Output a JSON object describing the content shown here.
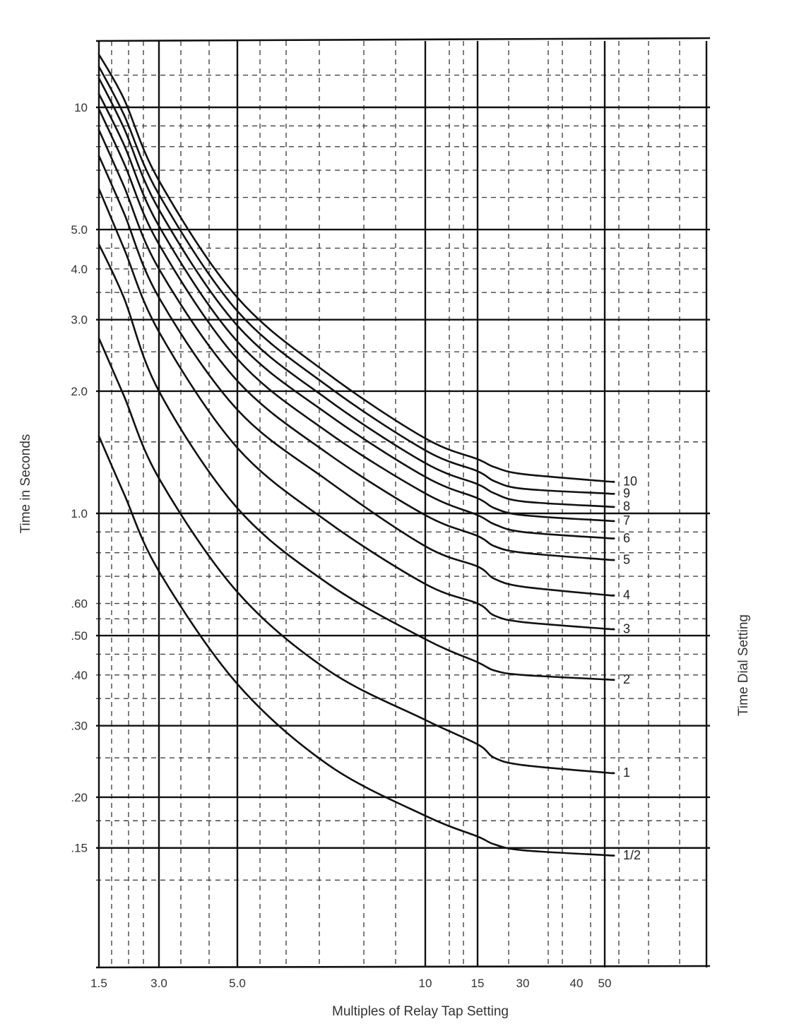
{
  "chart_data": {
    "type": "line",
    "title": "",
    "xlabel": "Multiples of Relay Tap Setting",
    "ylabel": "Time in Seconds",
    "right_label": "Time Dial Setting",
    "x_scale": "log (non-uniform ticks as printed)",
    "y_scale": "log",
    "xlim": [
      1.5,
      50
    ],
    "ylim": [
      0.1,
      14
    ],
    "x_ticks": [
      {
        "value": 1.5,
        "label": "1.5"
      },
      {
        "value": 3,
        "label": "3.0"
      },
      {
        "value": 5,
        "label": "5.0"
      },
      {
        "value": 10,
        "label": "10"
      },
      {
        "value": 15,
        "label": "15"
      },
      {
        "value": 30,
        "label": "30"
      },
      {
        "value": 40,
        "label": "40"
      },
      {
        "value": 50,
        "label": "50"
      }
    ],
    "y_ticks": [
      {
        "value": 10,
        "label": "10"
      },
      {
        "value": 5,
        "label": "5.0"
      },
      {
        "value": 4,
        "label": "4.0"
      },
      {
        "value": 3,
        "label": "3.0"
      },
      {
        "value": 2,
        "label": "2.0"
      },
      {
        "value": 1,
        "label": "1.0"
      },
      {
        "value": 0.6,
        "label": ".60"
      },
      {
        "value": 0.5,
        "label": ".50"
      },
      {
        "value": 0.4,
        "label": ".40"
      },
      {
        "value": 0.3,
        "label": ".30"
      },
      {
        "value": 0.2,
        "label": ".20"
      },
      {
        "value": 0.15,
        "label": ".15"
      }
    ],
    "grid": "solid major lines at labeled ticks, dashed minor lines",
    "series": [
      {
        "name": "10",
        "x": [
          1.5,
          2,
          3,
          5,
          7,
          10,
          15,
          20,
          30,
          50
        ],
        "y": [
          13.5,
          10.5,
          6.6,
          3.4,
          2.2,
          1.53,
          1.36,
          1.3,
          1.25,
          1.2
        ]
      },
      {
        "name": "9",
        "x": [
          1.5,
          2,
          3,
          5,
          7,
          10,
          15,
          20,
          30,
          50
        ],
        "y": [
          12.6,
          9.6,
          6.1,
          3.15,
          2.05,
          1.43,
          1.27,
          1.2,
          1.15,
          1.12
        ]
      },
      {
        "name": "8",
        "x": [
          1.5,
          2,
          3,
          5,
          7,
          10,
          15,
          20,
          30,
          50
        ],
        "y": [
          11.8,
          8.9,
          5.6,
          2.9,
          1.9,
          1.33,
          1.18,
          1.12,
          1.07,
          1.04
        ]
      },
      {
        "name": "7",
        "x": [
          1.5,
          2,
          3,
          5,
          7,
          10,
          15,
          20,
          30,
          50
        ],
        "y": [
          10.8,
          8.1,
          5.1,
          2.65,
          1.75,
          1.23,
          1.09,
          1.03,
          0.99,
          0.96
        ]
      },
      {
        "name": "6",
        "x": [
          1.5,
          2,
          3,
          5,
          7,
          10,
          15,
          20,
          30,
          50
        ],
        "y": [
          9.9,
          7.3,
          4.6,
          2.4,
          1.58,
          1.12,
          0.99,
          0.94,
          0.9,
          0.87
        ]
      },
      {
        "name": "5",
        "x": [
          1.5,
          2,
          3,
          5,
          7,
          10,
          15,
          20,
          30,
          50
        ],
        "y": [
          8.8,
          6.4,
          4.0,
          2.12,
          1.4,
          0.99,
          0.88,
          0.83,
          0.8,
          0.77
        ]
      },
      {
        "name": "4",
        "x": [
          1.5,
          2,
          3,
          5,
          7,
          10,
          15,
          20,
          30,
          50
        ],
        "y": [
          7.6,
          5.5,
          3.4,
          1.8,
          1.2,
          0.83,
          0.74,
          0.69,
          0.66,
          0.63
        ]
      },
      {
        "name": "3",
        "x": [
          1.5,
          2,
          3,
          5,
          7,
          10,
          15,
          20,
          30,
          50
        ],
        "y": [
          6.3,
          4.5,
          2.8,
          1.45,
          0.95,
          0.67,
          0.6,
          0.56,
          0.54,
          0.52
        ]
      },
      {
        "name": "2",
        "x": [
          1.5,
          2,
          3,
          5,
          7,
          10,
          15,
          20,
          30,
          50
        ],
        "y": [
          4.6,
          3.4,
          2.0,
          1.03,
          0.67,
          0.49,
          0.43,
          0.41,
          0.4,
          0.39
        ]
      },
      {
        "name": "1",
        "x": [
          1.5,
          2,
          3,
          5,
          7,
          10,
          15,
          20,
          30,
          50
        ],
        "y": [
          2.7,
          1.95,
          1.22,
          0.64,
          0.41,
          0.31,
          0.27,
          0.25,
          0.24,
          0.23
        ]
      },
      {
        "name": "1/2",
        "x": [
          1.5,
          2,
          3,
          5,
          7,
          10,
          15,
          20,
          30,
          50
        ],
        "y": [
          1.55,
          1.12,
          0.72,
          0.38,
          0.24,
          0.18,
          0.16,
          0.153,
          0.148,
          0.144
        ]
      }
    ]
  }
}
